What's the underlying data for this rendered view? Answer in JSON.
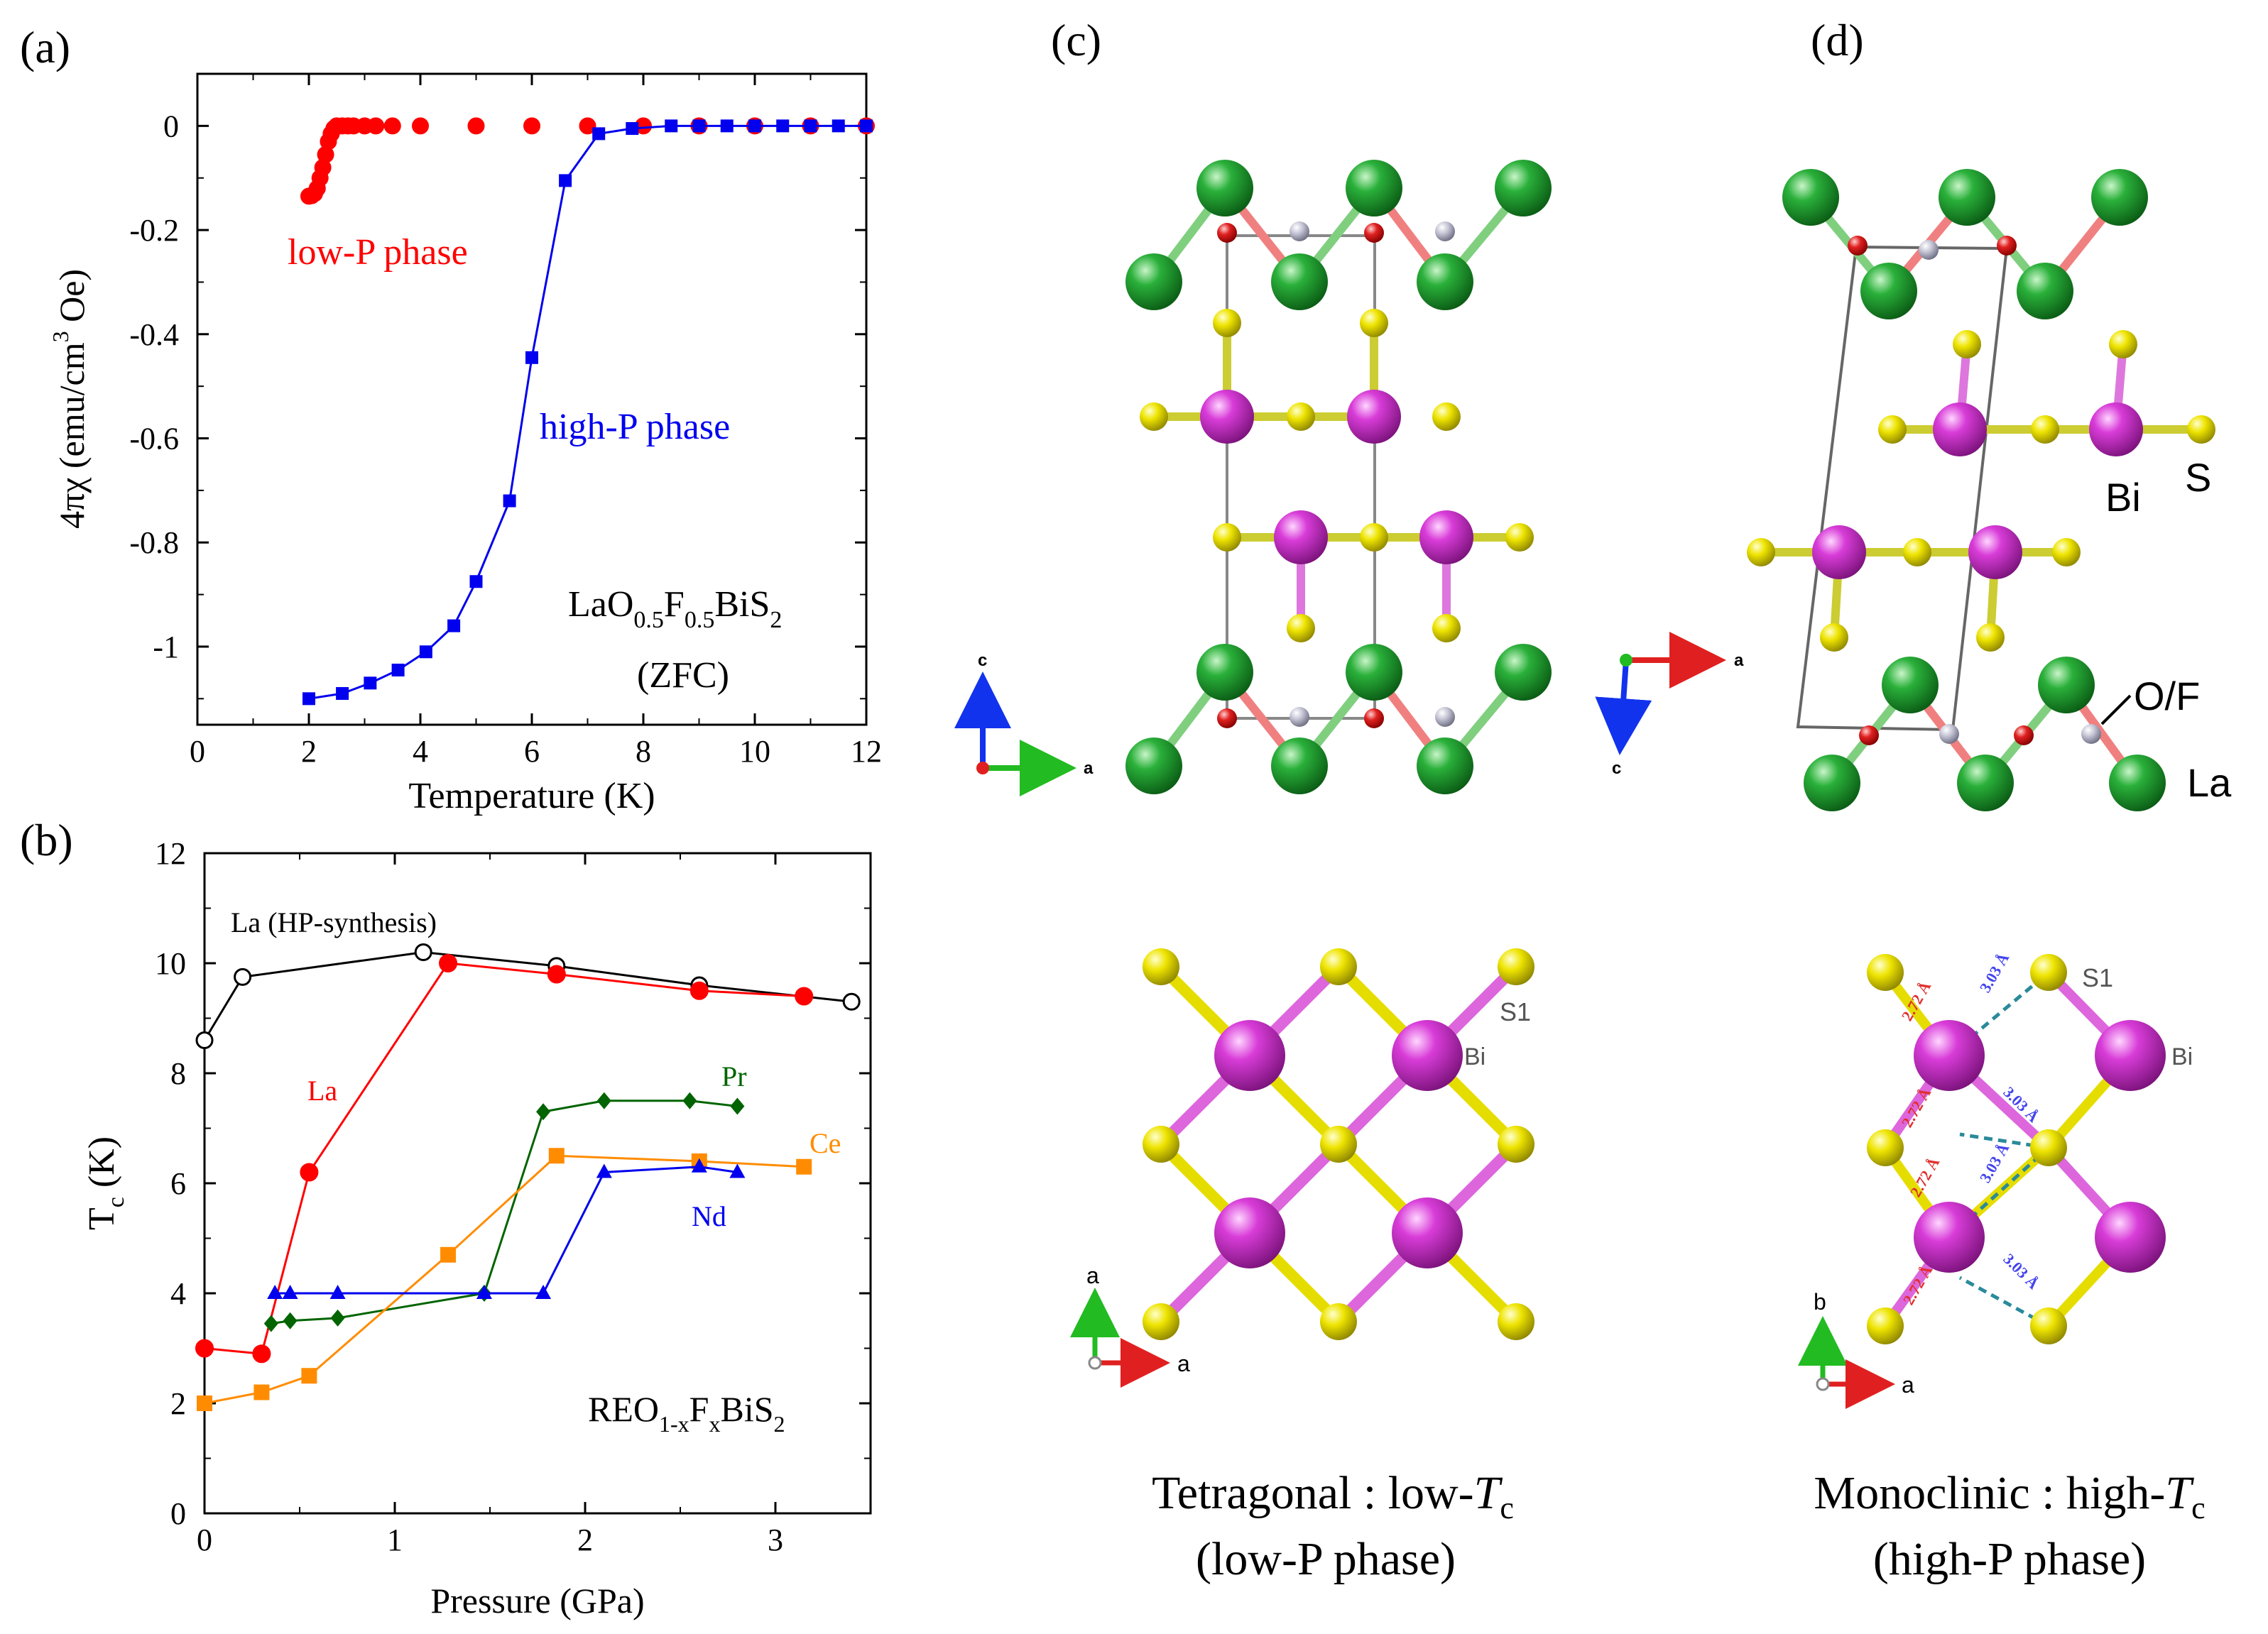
{
  "panels": {
    "a": {
      "label": "(a)"
    },
    "b": {
      "label": "(b)"
    },
    "c": {
      "label": "(c)"
    },
    "d": {
      "label": "(d)"
    }
  },
  "chart_data": [
    {
      "id": "a",
      "type": "scatter",
      "title": "",
      "xlabel": "Temperature (K)",
      "ylabel_parts": [
        "4πχ (emu/cm",
        "3",
        " Oe)"
      ],
      "xlim": [
        0,
        12
      ],
      "ylim": [
        -1.15,
        0.1
      ],
      "xticks": [
        "0",
        "2",
        "4",
        "6",
        "8",
        "10",
        "12"
      ],
      "yticks": [
        "0",
        "-0.2",
        "-0.4",
        "-0.6",
        "-0.8",
        "-1"
      ],
      "compound": {
        "main": "LaO",
        "s1": "0.5",
        "m2": "F",
        "s2": "0.5",
        "m3": "BiS",
        "s3": "2"
      },
      "note": "(ZFC)",
      "series": [
        {
          "name": "low-P phase",
          "color": "#ff0000",
          "marker": "circle",
          "x": [
            2.0,
            2.05,
            2.1,
            2.15,
            2.2,
            2.25,
            2.3,
            2.35,
            2.4,
            2.45,
            2.5,
            2.6,
            2.7,
            2.8,
            3.0,
            3.2,
            3.5,
            4,
            5,
            6,
            7,
            8,
            9,
            10,
            11,
            12
          ],
          "y": [
            -0.135,
            -0.134,
            -0.13,
            -0.12,
            -0.1,
            -0.08,
            -0.055,
            -0.03,
            -0.015,
            -0.005,
            0,
            0,
            0,
            0,
            0,
            0,
            0,
            0,
            0,
            0,
            0,
            0,
            0,
            0,
            0,
            0
          ]
        },
        {
          "name": "high-P phase",
          "color": "#0000ee",
          "marker": "square",
          "x": [
            2.0,
            2.6,
            3.1,
            3.6,
            4.1,
            4.6,
            5.0,
            5.6,
            6.0,
            6.6,
            7.2,
            7.8,
            8.5,
            9.0,
            9.5,
            10.0,
            10.5,
            11.0,
            11.5,
            12.0
          ],
          "y": [
            -1.1,
            -1.09,
            -1.07,
            -1.045,
            -1.01,
            -0.96,
            -0.875,
            -0.72,
            -0.445,
            -0.105,
            -0.015,
            -0.005,
            0,
            0,
            0,
            0,
            0,
            0,
            0,
            0
          ]
        }
      ]
    },
    {
      "id": "b",
      "type": "line",
      "title": "",
      "xlabel": "Pressure (GPa)",
      "ylabel": "T",
      "ylabel_sub": "c",
      "ylabel_unit": " (K)",
      "xlim": [
        0,
        3.5
      ],
      "ylim": [
        0,
        12
      ],
      "xticks": [
        "0",
        "1",
        "2",
        "3"
      ],
      "yticks": [
        "0",
        "2",
        "4",
        "6",
        "8",
        "10",
        "12"
      ],
      "compound": {
        "main": "REO",
        "s1": "1-x",
        "m2": "F",
        "s2": "x",
        "m3": "BiS",
        "s3": "2"
      },
      "series": [
        {
          "name": "La (HP-synthesis)",
          "color": "#000000",
          "marker": "open-circle",
          "x": [
            0,
            0.2,
            1.15,
            1.85,
            2.6,
            3.4
          ],
          "y": [
            8.6,
            9.75,
            10.2,
            9.95,
            9.6,
            9.3
          ]
        },
        {
          "name": "La",
          "color": "#ff0000",
          "marker": "circle",
          "x": [
            0,
            0.3,
            0.55,
            1.28,
            1.85,
            2.6,
            3.15
          ],
          "y": [
            3.0,
            2.9,
            6.2,
            10.0,
            9.8,
            9.5,
            9.4
          ]
        },
        {
          "name": "Pr",
          "color": "#006400",
          "marker": "diamond",
          "x": [
            0.35,
            0.45,
            0.7,
            1.47,
            1.78,
            2.1,
            2.55,
            2.8
          ],
          "y": [
            3.45,
            3.5,
            3.55,
            4.0,
            7.3,
            7.5,
            7.5,
            7.4
          ]
        },
        {
          "name": "Ce",
          "color": "#ff8c00",
          "marker": "square",
          "x": [
            0,
            0.3,
            0.55,
            1.28,
            1.85,
            2.6,
            3.15
          ],
          "y": [
            2.0,
            2.2,
            2.5,
            4.7,
            6.5,
            6.4,
            6.3
          ]
        },
        {
          "name": "Nd",
          "color": "#0000ee",
          "marker": "triangle",
          "x": [
            0.37,
            0.45,
            0.7,
            1.47,
            1.78,
            2.1,
            2.6,
            2.8
          ],
          "y": [
            4.0,
            4.0,
            4.0,
            4.0,
            4.0,
            6.2,
            6.3,
            6.2
          ]
        }
      ]
    }
  ],
  "structures": {
    "c_top": {
      "axis_v": "c",
      "axis_h": "a"
    },
    "d_top": {
      "axis_h": "a",
      "axis_v": "c",
      "labels": {
        "bi": "Bi",
        "s": "S",
        "of": "O/F",
        "la": "La"
      }
    },
    "c_bottom": {
      "axis_v": "a",
      "axis_h": "a",
      "labels": {
        "s1": "S1",
        "bi": "Bi"
      }
    },
    "d_bottom": {
      "axis_v": "b",
      "axis_h": "a",
      "labels": {
        "s1": "S1",
        "bi": "Bi"
      },
      "bond_short": "2.72 Å",
      "bond_long": "3.03 Å"
    }
  },
  "captions": {
    "c": {
      "line1": "Tetragonal : low-",
      "italic": "T",
      "sub": "c",
      "line2": "(low-P phase)"
    },
    "d": {
      "line1": "Monoclinic : high-",
      "italic": "T",
      "sub": "c",
      "line2": "(high-P phase)"
    }
  },
  "colors": {
    "la_atom": "#1a9a2a",
    "bi_atom": "#cc33cc",
    "s_atom": "#e6dd00",
    "o_atom": "#e03030",
    "f_atom": "#bbbbcc"
  }
}
